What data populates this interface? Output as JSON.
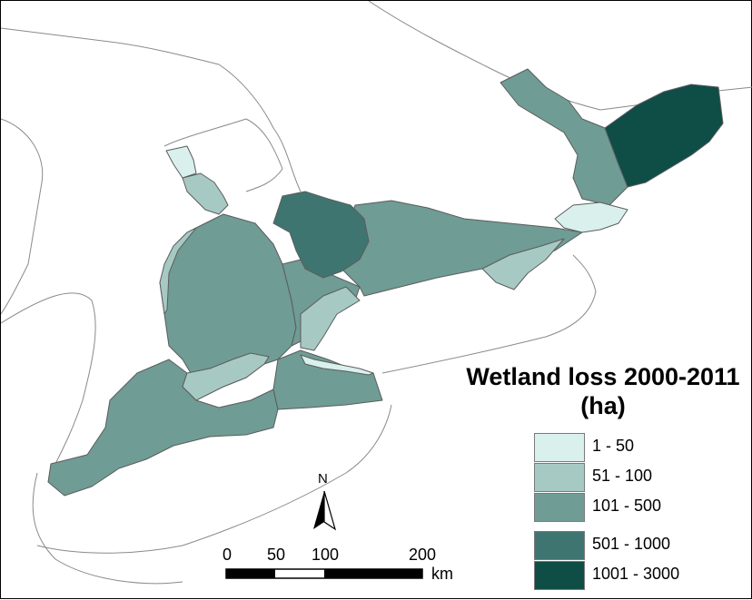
{
  "legend": {
    "title_line1": "Wetland loss 2000-2011",
    "title_line2": "(ha)",
    "items": [
      {
        "label": "1 - 50",
        "color": "#d9f0ec"
      },
      {
        "label": "51 - 100",
        "color": "#a7c9c3"
      },
      {
        "label": "101 - 500",
        "color": "#6f9c95"
      },
      {
        "label": "501 - 1000",
        "color": "#3f7570"
      },
      {
        "label": "1001 - 3000",
        "color": "#0f4d47"
      }
    ]
  },
  "scale_bar": {
    "ticks": [
      "0",
      "50",
      "100",
      "200"
    ],
    "unit": "km"
  },
  "north_arrow": {
    "label": "N"
  }
}
